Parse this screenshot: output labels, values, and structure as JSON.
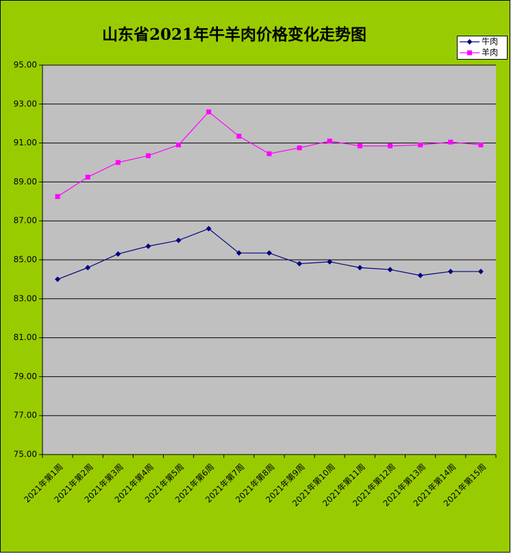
{
  "chart_data": {
    "type": "line",
    "title": "山东省2021年牛羊肉价格变化走势图",
    "categories": [
      "2021年第1周",
      "2021年第2周",
      "2021年第3周",
      "2021年第4周",
      "2021年第5周",
      "2021年第6周",
      "2021年第7周",
      "2021年第8周",
      "2021年第9周",
      "2021年第10周",
      "2021年第11周",
      "2021年第12周",
      "2021年第13周",
      "2021年第14周",
      "2021年第15周"
    ],
    "series": [
      {
        "name": "牛肉",
        "color": "#000080",
        "marker": "diamond",
        "values": [
          84.0,
          84.6,
          85.3,
          85.7,
          86.0,
          86.6,
          85.35,
          85.35,
          84.8,
          84.9,
          84.6,
          84.5,
          84.2,
          84.4,
          84.4
        ]
      },
      {
        "name": "羊肉",
        "color": "#ff00ff",
        "marker": "square",
        "values": [
          88.25,
          89.25,
          90.0,
          90.35,
          90.9,
          92.6,
          91.35,
          90.45,
          90.75,
          91.1,
          90.85,
          90.85,
          90.9,
          91.05,
          90.9
        ]
      }
    ],
    "ylim": [
      75,
      95
    ],
    "yticks": [
      {
        "value": 75,
        "label": "75.00"
      },
      {
        "value": 77,
        "label": "77.00"
      },
      {
        "value": 79,
        "label": "79.00"
      },
      {
        "value": 81,
        "label": "81.00"
      },
      {
        "value": 83,
        "label": "83.00"
      },
      {
        "value": 85,
        "label": "85.00"
      },
      {
        "value": 87,
        "label": "87.00"
      },
      {
        "value": 89,
        "label": "89.00"
      },
      {
        "value": 91,
        "label": "91.00"
      },
      {
        "value": 93,
        "label": "93.00"
      },
      {
        "value": 95,
        "label": "95.00"
      }
    ],
    "grid": true,
    "legend": "top-right"
  }
}
